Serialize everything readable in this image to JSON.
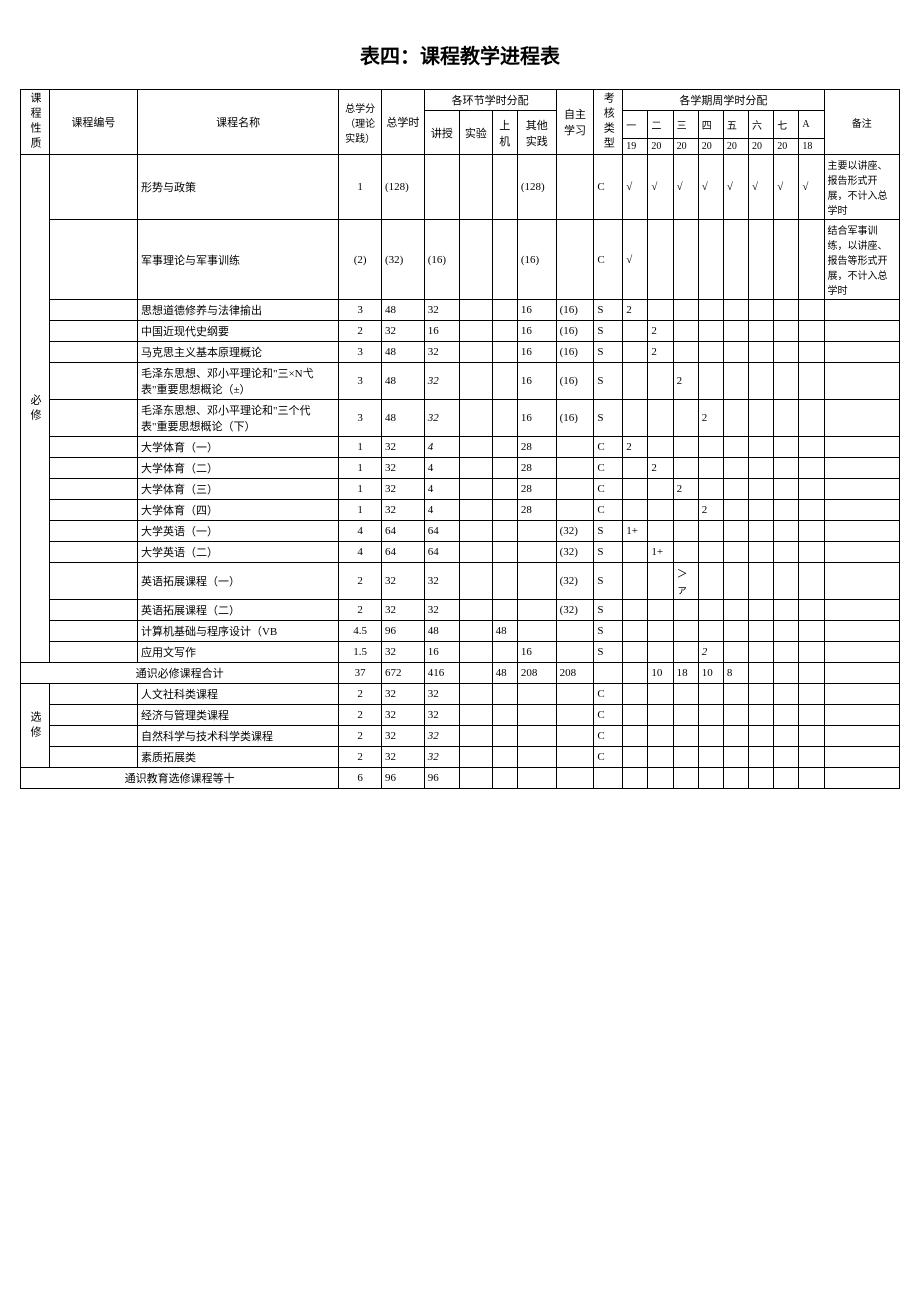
{
  "title": "表四：课程教学进程表",
  "headers": {
    "course_type": "课程性质",
    "course_code": "课程编号",
    "course_name": "课程名称",
    "total_credit": "总学分（理论实践）",
    "total_hours": "总学时",
    "segment_hours": "各环节学时分配",
    "lecture": "讲授",
    "experiment": "实验",
    "computer": "上机",
    "other_practice": "其他实践",
    "self_study": "自主学习",
    "exam_type": "考核类型",
    "semester_hours": "各学期周学时分配",
    "sem1": "一",
    "sem2": "二",
    "sem3": "三",
    "sem4": "四",
    "sem5": "五",
    "sem6": "六",
    "sem7": "七",
    "semA": "A",
    "remark": "备注",
    "week1": "19",
    "week2": "20",
    "week3": "20",
    "week4": "20",
    "week5": "20",
    "week6": "20",
    "week7": "20",
    "weekA": "18"
  },
  "groups": {
    "required": "必修",
    "elective": "选修"
  },
  "rows": [
    {
      "name": "形势与政策",
      "credit": "1",
      "hours": "(128)",
      "lecture": "",
      "other": "(128)",
      "self": "",
      "exam": "C",
      "s1": "√",
      "s2": "√",
      "s3": "√",
      "s4": "√",
      "s5": "√",
      "s6": "√",
      "s7": "√",
      "sA": "√",
      "remark": "主要以讲座、报告形式开展，不计入总学时"
    },
    {
      "name": "军事理论与军事训练",
      "credit": "(2)",
      "hours": "(32)",
      "lecture": "(16)",
      "other": "(16)",
      "self": "",
      "exam": "C",
      "s1": "√",
      "s2": "",
      "s3": "",
      "s4": "",
      "s5": "",
      "s6": "",
      "s7": "",
      "sA": "",
      "remark": "结合军事训练，以讲座、报告等形式开展，不计入总学时"
    },
    {
      "name": "思想道德修养与法律揄出",
      "credit": "3",
      "hours": "48",
      "lecture": "32",
      "other": "16",
      "self": "(16)",
      "exam": "S",
      "s1": "2",
      "s2": "",
      "s3": "",
      "s4": "",
      "s5": "",
      "s6": "",
      "s7": "",
      "sA": "",
      "remark": ""
    },
    {
      "name": "中国近现代史纲要",
      "credit": "2",
      "hours": "32",
      "lecture": "16",
      "other": "16",
      "self": "(16)",
      "exam": "S",
      "s1": "",
      "s2": "2",
      "s3": "",
      "s4": "",
      "s5": "",
      "s6": "",
      "s7": "",
      "sA": "",
      "remark": ""
    },
    {
      "name": "马克思主义基本原理概论",
      "credit": "3",
      "hours": "48",
      "lecture": "32",
      "other": "16",
      "self": "(16)",
      "exam": "S",
      "s1": "",
      "s2": "2",
      "s3": "",
      "s4": "",
      "s5": "",
      "s6": "",
      "s7": "",
      "sA": "",
      "remark": ""
    },
    {
      "name": "毛泽东思想、邓小平理论和\"三×N弋表\"重要思想概论（±）",
      "credit": "3",
      "hours": "48",
      "lecture": "32",
      "lecture_italic": true,
      "other": "16",
      "self": "(16)",
      "exam": "S",
      "s1": "",
      "s2": "",
      "s3": "2",
      "s4": "",
      "s5": "",
      "s6": "",
      "s7": "",
      "sA": "",
      "remark": ""
    },
    {
      "name": "毛泽东思想、邓小平理论和\"三个代表\"重要思想概论（下）",
      "credit": "3",
      "hours": "48",
      "lecture": "32",
      "lecture_italic": true,
      "other": "16",
      "self": "(16)",
      "exam": "S",
      "s1": "",
      "s2": "",
      "s3": "",
      "s4": "2",
      "s5": "",
      "s6": "",
      "s7": "",
      "sA": "",
      "remark": ""
    },
    {
      "name": "大学体育（一）",
      "credit": "1",
      "hours": "32",
      "lecture": "4",
      "lecture_italic": true,
      "other": "28",
      "self": "",
      "exam": "C",
      "s1": "2",
      "s2": "",
      "s3": "",
      "s4": "",
      "s5": "",
      "s6": "",
      "s7": "",
      "sA": "",
      "remark": ""
    },
    {
      "name": "大学体育（二）",
      "credit": "1",
      "hours": "32",
      "lecture": "4",
      "other": "28",
      "self": "",
      "exam": "C",
      "s1": "",
      "s2": "2",
      "s3": "",
      "s4": "",
      "s5": "",
      "s6": "",
      "s7": "",
      "sA": "",
      "remark": ""
    },
    {
      "name": "大学体育（三）",
      "credit": "1",
      "hours": "32",
      "lecture": "4",
      "other": "28",
      "self": "",
      "exam": "C",
      "s1": "",
      "s2": "",
      "s3": "2",
      "s4": "",
      "s5": "",
      "s6": "",
      "s7": "",
      "sA": "",
      "remark": ""
    },
    {
      "name": "大学体育（四）",
      "credit": "1",
      "hours": "32",
      "lecture": "4",
      "other": "28",
      "self": "",
      "exam": "C",
      "s1": "",
      "s2": "",
      "s3": "",
      "s4": "2",
      "s5": "",
      "s6": "",
      "s7": "",
      "sA": "",
      "remark": ""
    },
    {
      "name": "大学英语（一）",
      "credit": "4",
      "hours": "64",
      "lecture": "64",
      "other": "",
      "self": "(32)",
      "exam": "S",
      "s1": "1+",
      "s2": "",
      "s3": "",
      "s4": "",
      "s5": "",
      "s6": "",
      "s7": "",
      "sA": "",
      "remark": ""
    },
    {
      "name": "大学英语（二）",
      "credit": "4",
      "hours": "64",
      "lecture": "64",
      "other": "",
      "self": "(32)",
      "exam": "S",
      "s1": "",
      "s2": "1+",
      "s3": "",
      "s4": "",
      "s5": "",
      "s6": "",
      "s7": "",
      "sA": "",
      "remark": ""
    },
    {
      "name": "英语拓展课程（一）",
      "credit": "2",
      "hours": "32",
      "lecture": "32",
      "other": "",
      "self": "(32)",
      "exam": "S",
      "s1": "",
      "s2": "",
      "s3": "＞ァ",
      "s4": "",
      "s5": "",
      "s6": "",
      "s7": "",
      "sA": "",
      "remark": ""
    },
    {
      "name": "英语拓展课程（二）",
      "credit": "2",
      "hours": "32",
      "lecture": "32",
      "other": "",
      "self": "(32)",
      "exam": "S",
      "s1": "",
      "s2": "",
      "s3": "",
      "s4": "",
      "s5": "",
      "s6": "",
      "s7": "",
      "sA": "",
      "remark": ""
    },
    {
      "name": "计算机基础与程序设计（VB",
      "credit": "4.5",
      "hours": "96",
      "lecture": "48",
      "computer": "48",
      "other": "",
      "self": "",
      "exam": "S",
      "s1": "",
      "s2": "",
      "s3": "",
      "s4": "",
      "s5": "",
      "s6": "",
      "s7": "",
      "sA": "",
      "remark": ""
    },
    {
      "name": "应用文写作",
      "credit": "1.5",
      "hours": "32",
      "lecture": "16",
      "other": "16",
      "self": "",
      "exam": "S",
      "s1": "",
      "s2": "",
      "s3": "",
      "s4": "2",
      "s4_italic": true,
      "s5": "",
      "s6": "",
      "s7": "",
      "sA": "",
      "remark": ""
    }
  ],
  "required_total": {
    "label": "通识必修课程合计",
    "credit": "37",
    "hours": "672",
    "lecture": "416",
    "computer": "48",
    "other": "208",
    "self": "208",
    "s1": "",
    "s2": "10",
    "s3": "18",
    "s4": "10",
    "s5": "8"
  },
  "elective_rows": [
    {
      "name": "人文社科类课程",
      "credit": "2",
      "hours": "32",
      "lecture": "32",
      "exam": "C"
    },
    {
      "name": "经济与管理类课程",
      "credit": "2",
      "hours": "32",
      "lecture": "32",
      "exam": "C"
    },
    {
      "name": "自然科学与技术科学类课程",
      "credit": "2",
      "hours": "32",
      "lecture": "32",
      "lecture_italic": true,
      "exam": "C"
    },
    {
      "name": "素质拓展类",
      "credit": "2",
      "hours": "32",
      "lecture": "32",
      "lecture_italic": true,
      "exam": "C"
    }
  ],
  "elective_total": {
    "label": "通识教育选修课程等十",
    "credit": "6",
    "hours": "96",
    "lecture": "96"
  }
}
